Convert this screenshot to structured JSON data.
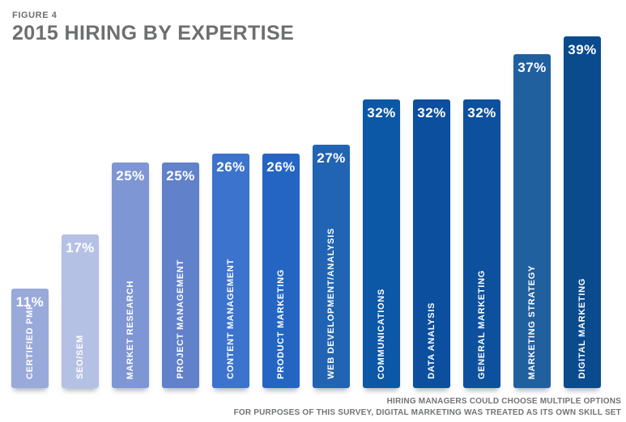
{
  "header": {
    "figure_label": "FIGURE 4",
    "title": "2015 HIRING BY EXPERTISE"
  },
  "chart_data": {
    "type": "bar",
    "title": "2015 HIRING BY EXPERTISE",
    "figure_label": "FIGURE 4",
    "value_suffix": "%",
    "categories": [
      "CERTIFIED PMP",
      "SEO/SEM",
      "MARKET RESEARCH",
      "PROJECT MANAGEMENT",
      "CONTENT MANAGEMENT",
      "PRODUCT MARKETING",
      "WEB DEVELOPMENT/ANALYSIS",
      "COMMUNICATIONS",
      "DATA ANALYSIS",
      "GENERAL MARKETING",
      "MARKETING STRATEGY",
      "DIGITAL MARKETING"
    ],
    "values": [
      11,
      17,
      25,
      25,
      26,
      26,
      27,
      32,
      32,
      32,
      37,
      39
    ],
    "bar_colors": [
      "#99a9d9",
      "#b5c1e4",
      "#7e96d3",
      "#6181cb",
      "#3c73cd",
      "#2465c4",
      "#2164b3",
      "#0d57a7",
      "#0b4f9e",
      "#0d509e",
      "#21609f",
      "#0a4b8e"
    ],
    "ylim": [
      0,
      40
    ],
    "grid": false,
    "legend": false,
    "value_labels_position": "inside-top",
    "category_labels_position": "inside-bottom-rotated"
  },
  "footnotes": {
    "line1": "HIRING MANAGERS COULD CHOOSE MULTIPLE OPTIONS",
    "line2": "FOR PURPOSES OF THIS SURVEY, DIGITAL MARKETING WAS TREATED AS ITS OWN SKILL SET"
  },
  "colors": {
    "background": "#ffffff",
    "title_text": "#6d6e71",
    "footnote_text": "#717376",
    "bar_label_text": "#ffffff"
  }
}
